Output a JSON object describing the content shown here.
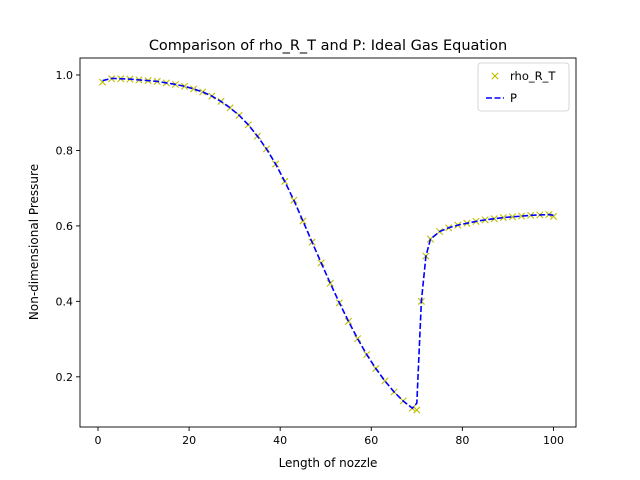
{
  "chart_data": {
    "type": "line",
    "title": "Comparison of rho_R_T and P: Ideal Gas Equation",
    "xlabel": "Length of nozzle",
    "ylabel": "Non-dimensional Pressure",
    "xlim": [
      -3.95,
      104.95
    ],
    "ylim": [
      0.067,
      1.045
    ],
    "xticks": [
      0,
      20,
      40,
      60,
      80,
      100
    ],
    "yticks": [
      0.2,
      0.4,
      0.6,
      0.8,
      1.0
    ],
    "xtick_labels": [
      "0",
      "20",
      "40",
      "60",
      "80",
      "100"
    ],
    "ytick_labels": [
      "0.2",
      "0.4",
      "0.6",
      "0.8",
      "1.0"
    ],
    "grid": false,
    "legend_position": "top-right",
    "series": [
      {
        "name": "rho_R_T",
        "style": "markers",
        "marker": "x",
        "color": "#bfbf00",
        "x": [
          1,
          3,
          5,
          7,
          9,
          11,
          13,
          15,
          17,
          19,
          21,
          23,
          25,
          27,
          29,
          31,
          33,
          35,
          37,
          39,
          41,
          43,
          45,
          47,
          49,
          51,
          53,
          55,
          57,
          59,
          61,
          63,
          65,
          67,
          69,
          70,
          71,
          72,
          73,
          75,
          77,
          79,
          81,
          83,
          85,
          87,
          89,
          91,
          93,
          95,
          97,
          99,
          100
        ],
        "values": [
          0.981,
          0.99,
          0.99,
          0.989,
          0.987,
          0.985,
          0.983,
          0.979,
          0.975,
          0.97,
          0.963,
          0.955,
          0.944,
          0.93,
          0.913,
          0.893,
          0.868,
          0.838,
          0.804,
          0.764,
          0.718,
          0.668,
          0.613,
          0.557,
          0.502,
          0.448,
          0.396,
          0.347,
          0.301,
          0.259,
          0.222,
          0.189,
          0.16,
          0.136,
          0.117,
          0.112,
          0.4,
          0.52,
          0.565,
          0.585,
          0.595,
          0.602,
          0.607,
          0.612,
          0.616,
          0.619,
          0.622,
          0.624,
          0.626,
          0.628,
          0.629,
          0.63,
          0.625
        ]
      },
      {
        "name": "P",
        "style": "dashed",
        "color": "#0000ff",
        "x": [
          1,
          3,
          5,
          7,
          9,
          11,
          13,
          15,
          17,
          19,
          21,
          23,
          25,
          27,
          29,
          31,
          33,
          35,
          37,
          39,
          41,
          43,
          45,
          47,
          49,
          51,
          53,
          55,
          57,
          59,
          61,
          63,
          65,
          67,
          69,
          70,
          71,
          72,
          73,
          75,
          77,
          79,
          81,
          83,
          85,
          87,
          89,
          91,
          93,
          95,
          97,
          99,
          100
        ],
        "values": [
          0.985,
          0.991,
          0.99,
          0.989,
          0.987,
          0.985,
          0.983,
          0.979,
          0.975,
          0.97,
          0.963,
          0.955,
          0.944,
          0.93,
          0.913,
          0.893,
          0.868,
          0.838,
          0.804,
          0.764,
          0.718,
          0.668,
          0.613,
          0.557,
          0.502,
          0.448,
          0.396,
          0.347,
          0.301,
          0.259,
          0.222,
          0.189,
          0.16,
          0.136,
          0.117,
          0.13,
          0.4,
          0.52,
          0.565,
          0.585,
          0.595,
          0.602,
          0.607,
          0.612,
          0.616,
          0.619,
          0.622,
          0.624,
          0.626,
          0.628,
          0.629,
          0.63,
          0.628
        ]
      }
    ]
  }
}
